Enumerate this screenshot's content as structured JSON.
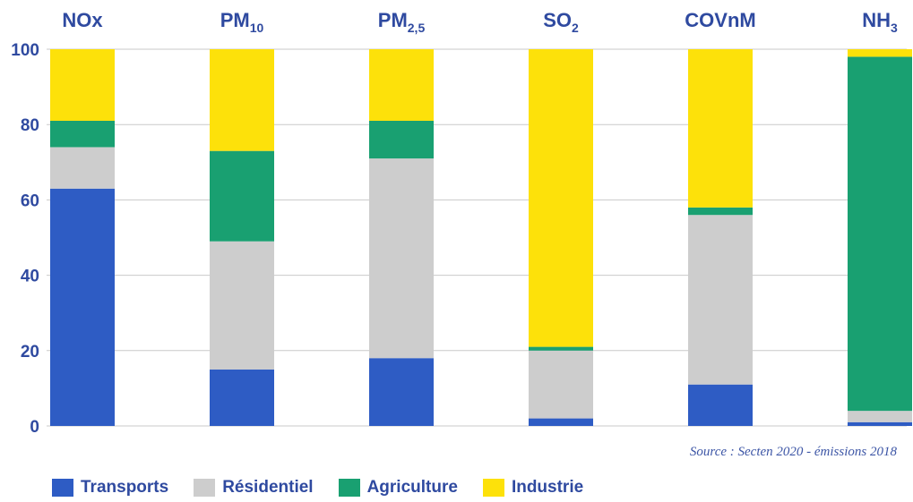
{
  "chart_data": {
    "type": "bar",
    "stacked": true,
    "categories": [
      {
        "base": "NOx",
        "sub": ""
      },
      {
        "base": "PM",
        "sub": "10"
      },
      {
        "base": "PM",
        "sub": "2,5"
      },
      {
        "base": "SO",
        "sub": "2"
      },
      {
        "base": "COVnM",
        "sub": ""
      },
      {
        "base": "NH",
        "sub": "3"
      }
    ],
    "series": [
      {
        "name": "Transports",
        "color": "#2e5cc4",
        "values": [
          63,
          15,
          18,
          2,
          11,
          1
        ]
      },
      {
        "name": "Résidentiel",
        "color": "#cdcdcd",
        "values": [
          11,
          34,
          53,
          18,
          45,
          3
        ]
      },
      {
        "name": "Agriculture",
        "color": "#19a071",
        "values": [
          7,
          24,
          10,
          1,
          2,
          94
        ]
      },
      {
        "name": "Industrie",
        "color": "#fde10a",
        "values": [
          19,
          27,
          19,
          79,
          42,
          2
        ]
      }
    ],
    "ylim": [
      0,
      100
    ],
    "yticks": [
      0,
      20,
      40,
      60,
      80,
      100
    ],
    "grid": true,
    "legend_position": "bottom-left"
  },
  "source_note": "Source : Secten 2020 - émissions 2018"
}
